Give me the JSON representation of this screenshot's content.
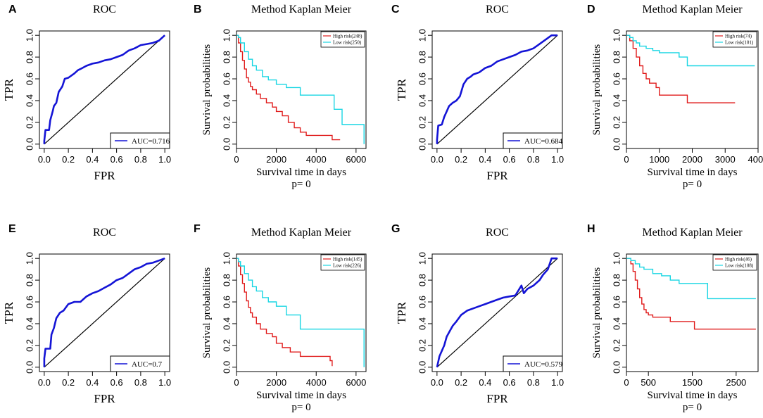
{
  "colors": {
    "roc": "#1414d6",
    "high": "#e01b1b",
    "low": "#19d6e3",
    "axis": "#000000"
  },
  "chart_data": [
    {
      "panel": "A",
      "type": "line",
      "title": "ROC",
      "xlabel": "FPR",
      "ylabel": "TPR",
      "xlim": [
        0,
        1
      ],
      "ylim": [
        0,
        1
      ],
      "xticks": [
        "0.0",
        "0.2",
        "0.4",
        "0.6",
        "0.8",
        "1.0"
      ],
      "yticks": [
        "0.0",
        "0.2",
        "0.4",
        "0.6",
        "0.8",
        "1.0"
      ],
      "legend": "AUC=0.716",
      "series": [
        {
          "name": "ROC",
          "x": [
            0,
            0,
            0.01,
            0.04,
            0.05,
            0.06,
            0.07,
            0.08,
            0.1,
            0.12,
            0.15,
            0.17,
            0.2,
            0.25,
            0.28,
            0.3,
            0.35,
            0.4,
            0.45,
            0.5,
            0.55,
            0.6,
            0.65,
            0.7,
            0.75,
            0.8,
            0.85,
            0.9,
            0.95,
            1.0
          ],
          "y": [
            0,
            0.03,
            0.13,
            0.13,
            0.22,
            0.26,
            0.3,
            0.35,
            0.38,
            0.48,
            0.53,
            0.6,
            0.61,
            0.65,
            0.68,
            0.69,
            0.72,
            0.74,
            0.75,
            0.77,
            0.78,
            0.8,
            0.82,
            0.86,
            0.88,
            0.91,
            0.92,
            0.93,
            0.95,
            1.0
          ]
        }
      ],
      "diagonal": true
    },
    {
      "panel": "B",
      "type": "line",
      "title": "Method Kaplan Meier",
      "xlabel": "Survival time in days",
      "ylabel": "Survival probabilities",
      "pvalue": "p= 0",
      "xlim": [
        0,
        6500
      ],
      "ylim": [
        0,
        1
      ],
      "xticks": [
        "0",
        "2000",
        "4000",
        "6000"
      ],
      "xtickvals": [
        0,
        2000,
        4000,
        6000
      ],
      "yticks": [
        "0.0",
        "0.2",
        "0.4",
        "0.6",
        "0.8",
        "1.0"
      ],
      "series": [
        {
          "name": "High risk(248)",
          "x": [
            0,
            100,
            200,
            300,
            400,
            500,
            600,
            700,
            800,
            1000,
            1200,
            1500,
            1800,
            2000,
            2300,
            2600,
            2900,
            3200,
            3500,
            4000,
            4800,
            5200
          ],
          "y": [
            1.0,
            0.93,
            0.85,
            0.77,
            0.69,
            0.61,
            0.57,
            0.53,
            0.5,
            0.46,
            0.42,
            0.38,
            0.34,
            0.3,
            0.26,
            0.2,
            0.15,
            0.11,
            0.08,
            0.08,
            0.04,
            0.04
          ]
        },
        {
          "name": "Low risk(250)",
          "x": [
            0,
            100,
            200,
            400,
            600,
            800,
            1000,
            1300,
            1600,
            2000,
            2500,
            3200,
            4000,
            4700,
            4900,
            5300,
            6400,
            6400
          ],
          "y": [
            1.0,
            0.98,
            0.93,
            0.85,
            0.78,
            0.72,
            0.68,
            0.62,
            0.59,
            0.55,
            0.52,
            0.45,
            0.45,
            0.45,
            0.32,
            0.18,
            0.18,
            0.0
          ]
        }
      ]
    },
    {
      "panel": "C",
      "type": "line",
      "title": "ROC",
      "xlabel": "FPR",
      "ylabel": "TPR",
      "xlim": [
        0,
        1
      ],
      "ylim": [
        0,
        1
      ],
      "xticks": [
        "0.0",
        "0.2",
        "0.4",
        "0.6",
        "0.8",
        "1.0"
      ],
      "yticks": [
        "0.0",
        "0.2",
        "0.4",
        "0.6",
        "0.8",
        "1.0"
      ],
      "legend": "AUC=0.684",
      "series": [
        {
          "name": "ROC",
          "x": [
            0,
            0,
            0.01,
            0.04,
            0.06,
            0.08,
            0.1,
            0.13,
            0.16,
            0.19,
            0.22,
            0.25,
            0.28,
            0.3,
            0.35,
            0.4,
            0.45,
            0.5,
            0.55,
            0.6,
            0.65,
            0.7,
            0.75,
            0.8,
            0.85,
            0.9,
            0.95,
            1.0
          ],
          "y": [
            0,
            0.04,
            0.17,
            0.18,
            0.25,
            0.3,
            0.35,
            0.38,
            0.4,
            0.44,
            0.55,
            0.6,
            0.62,
            0.64,
            0.66,
            0.7,
            0.72,
            0.76,
            0.78,
            0.8,
            0.82,
            0.85,
            0.86,
            0.88,
            0.92,
            0.96,
            1.0,
            1.0
          ]
        }
      ],
      "diagonal": true
    },
    {
      "panel": "D",
      "type": "line",
      "title": "Method Kaplan Meier",
      "xlabel": "Survival time in days",
      "ylabel": "Survival probabilities",
      "pvalue": "p= 0",
      "xlim": [
        0,
        4000
      ],
      "ylim": [
        0,
        1
      ],
      "xticks": [
        "0",
        "1000",
        "2000",
        "3000",
        "4000"
      ],
      "xtickvals": [
        0,
        1000,
        2000,
        3000,
        4000
      ],
      "yticks": [
        "0.0",
        "0.2",
        "0.4",
        "0.6",
        "0.8",
        "1.0"
      ],
      "series": [
        {
          "name": "High risk(74)",
          "x": [
            0,
            100,
            200,
            300,
            400,
            500,
            600,
            700,
            800,
            900,
            1000,
            1200,
            1800,
            1850,
            3300
          ],
          "y": [
            1.0,
            0.95,
            0.88,
            0.8,
            0.72,
            0.65,
            0.6,
            0.56,
            0.56,
            0.52,
            0.45,
            0.45,
            0.45,
            0.38,
            0.38
          ]
        },
        {
          "name": "Low risk(101)",
          "x": [
            0,
            100,
            200,
            300,
            400,
            600,
            800,
            1000,
            1300,
            1600,
            1800,
            1850,
            3900
          ],
          "y": [
            1.0,
            0.98,
            0.95,
            0.93,
            0.9,
            0.88,
            0.86,
            0.84,
            0.84,
            0.8,
            0.8,
            0.72,
            0.72
          ]
        }
      ]
    },
    {
      "panel": "E",
      "type": "line",
      "title": "ROC",
      "xlabel": "FPR",
      "ylabel": "TPR",
      "xlim": [
        0,
        1
      ],
      "ylim": [
        0,
        1
      ],
      "xticks": [
        "0.0",
        "0.2",
        "0.4",
        "0.6",
        "0.8",
        "1.0"
      ],
      "yticks": [
        "0.0",
        "0.2",
        "0.4",
        "0.6",
        "0.8",
        "1.0"
      ],
      "legend": "AUC=0.7",
      "series": [
        {
          "name": "ROC",
          "x": [
            0,
            0,
            0.01,
            0.05,
            0.06,
            0.08,
            0.1,
            0.13,
            0.16,
            0.2,
            0.25,
            0.3,
            0.35,
            0.4,
            0.45,
            0.5,
            0.55,
            0.6,
            0.65,
            0.7,
            0.75,
            0.8,
            0.85,
            0.9,
            0.95,
            1.0
          ],
          "y": [
            0,
            0.08,
            0.17,
            0.17,
            0.3,
            0.36,
            0.45,
            0.5,
            0.52,
            0.58,
            0.6,
            0.6,
            0.65,
            0.68,
            0.7,
            0.73,
            0.76,
            0.8,
            0.82,
            0.86,
            0.9,
            0.92,
            0.95,
            0.96,
            0.98,
            1.0
          ]
        }
      ],
      "diagonal": true
    },
    {
      "panel": "F",
      "type": "line",
      "title": "Method Kaplan Meier",
      "xlabel": "Survival time in days",
      "ylabel": "Survival probabilities",
      "pvalue": "p= 0",
      "xlim": [
        0,
        6500
      ],
      "ylim": [
        0,
        1
      ],
      "xticks": [
        "0",
        "2000",
        "4000",
        "6000"
      ],
      "xtickvals": [
        0,
        2000,
        4000,
        6000
      ],
      "yticks": [
        "0.0",
        "0.2",
        "0.4",
        "0.6",
        "0.8",
        "1.0"
      ],
      "series": [
        {
          "name": "High risk(145)",
          "x": [
            0,
            100,
            200,
            300,
            400,
            500,
            600,
            700,
            800,
            1000,
            1200,
            1500,
            1800,
            2000,
            2300,
            2700,
            3200,
            4700,
            4800
          ],
          "y": [
            1.0,
            0.93,
            0.85,
            0.77,
            0.69,
            0.61,
            0.55,
            0.5,
            0.46,
            0.4,
            0.35,
            0.31,
            0.28,
            0.22,
            0.18,
            0.14,
            0.1,
            0.06,
            0.01
          ]
        },
        {
          "name": "Low risk(226)",
          "x": [
            0,
            100,
            200,
            400,
            600,
            800,
            1000,
            1300,
            1600,
            2000,
            2500,
            3200,
            6400,
            6400
          ],
          "y": [
            1.0,
            0.97,
            0.93,
            0.86,
            0.8,
            0.74,
            0.7,
            0.64,
            0.6,
            0.56,
            0.48,
            0.35,
            0.35,
            0.0
          ]
        }
      ]
    },
    {
      "panel": "G",
      "type": "line",
      "title": "ROC",
      "xlabel": "FPR",
      "ylabel": "TPR",
      "xlim": [
        0,
        1
      ],
      "ylim": [
        0,
        1
      ],
      "xticks": [
        "0.0",
        "0.2",
        "0.4",
        "0.6",
        "0.8",
        "1.0"
      ],
      "yticks": [
        "0.0",
        "0.2",
        "0.4",
        "0.6",
        "0.8",
        "1.0"
      ],
      "legend": "AUC=0.579",
      "series": [
        {
          "name": "ROC",
          "x": [
            0,
            0.01,
            0.02,
            0.04,
            0.06,
            0.08,
            0.1,
            0.13,
            0.16,
            0.2,
            0.25,
            0.3,
            0.35,
            0.4,
            0.45,
            0.5,
            0.55,
            0.6,
            0.65,
            0.7,
            0.72,
            0.75,
            0.8,
            0.85,
            0.88,
            0.92,
            0.95,
            1.0
          ],
          "y": [
            0,
            0.05,
            0.1,
            0.15,
            0.2,
            0.28,
            0.32,
            0.38,
            0.42,
            0.48,
            0.52,
            0.54,
            0.56,
            0.58,
            0.6,
            0.62,
            0.64,
            0.65,
            0.66,
            0.75,
            0.68,
            0.72,
            0.75,
            0.8,
            0.85,
            0.9,
            1.0,
            1.0
          ]
        }
      ],
      "diagonal": true
    },
    {
      "panel": "H",
      "type": "line",
      "title": "Method Kaplan Meier",
      "xlabel": "Survival time in days",
      "ylabel": "Survival probabilities",
      "pvalue": "p= 0",
      "xlim": [
        0,
        3000
      ],
      "ylim": [
        0,
        1
      ],
      "xticks": [
        "0",
        "500",
        "1500",
        "2500"
      ],
      "xtickvals": [
        0,
        500,
        1500,
        2500
      ],
      "yticks": [
        "0.0",
        "0.2",
        "0.4",
        "0.6",
        "0.8",
        "1.0"
      ],
      "series": [
        {
          "name": "High risk(46)",
          "x": [
            0,
            100,
            150,
            200,
            250,
            300,
            350,
            400,
            450,
            500,
            600,
            700,
            1000,
            1500,
            1550,
            2950
          ],
          "y": [
            1.0,
            0.95,
            0.88,
            0.8,
            0.72,
            0.64,
            0.58,
            0.53,
            0.5,
            0.48,
            0.46,
            0.46,
            0.42,
            0.42,
            0.35,
            0.35
          ]
        },
        {
          "name": "Low risk(108)",
          "x": [
            0,
            100,
            200,
            300,
            400,
            600,
            800,
            1000,
            1200,
            1800,
            1850,
            2950
          ],
          "y": [
            1.0,
            0.98,
            0.95,
            0.92,
            0.9,
            0.86,
            0.84,
            0.8,
            0.77,
            0.77,
            0.63,
            0.63
          ]
        }
      ]
    }
  ]
}
